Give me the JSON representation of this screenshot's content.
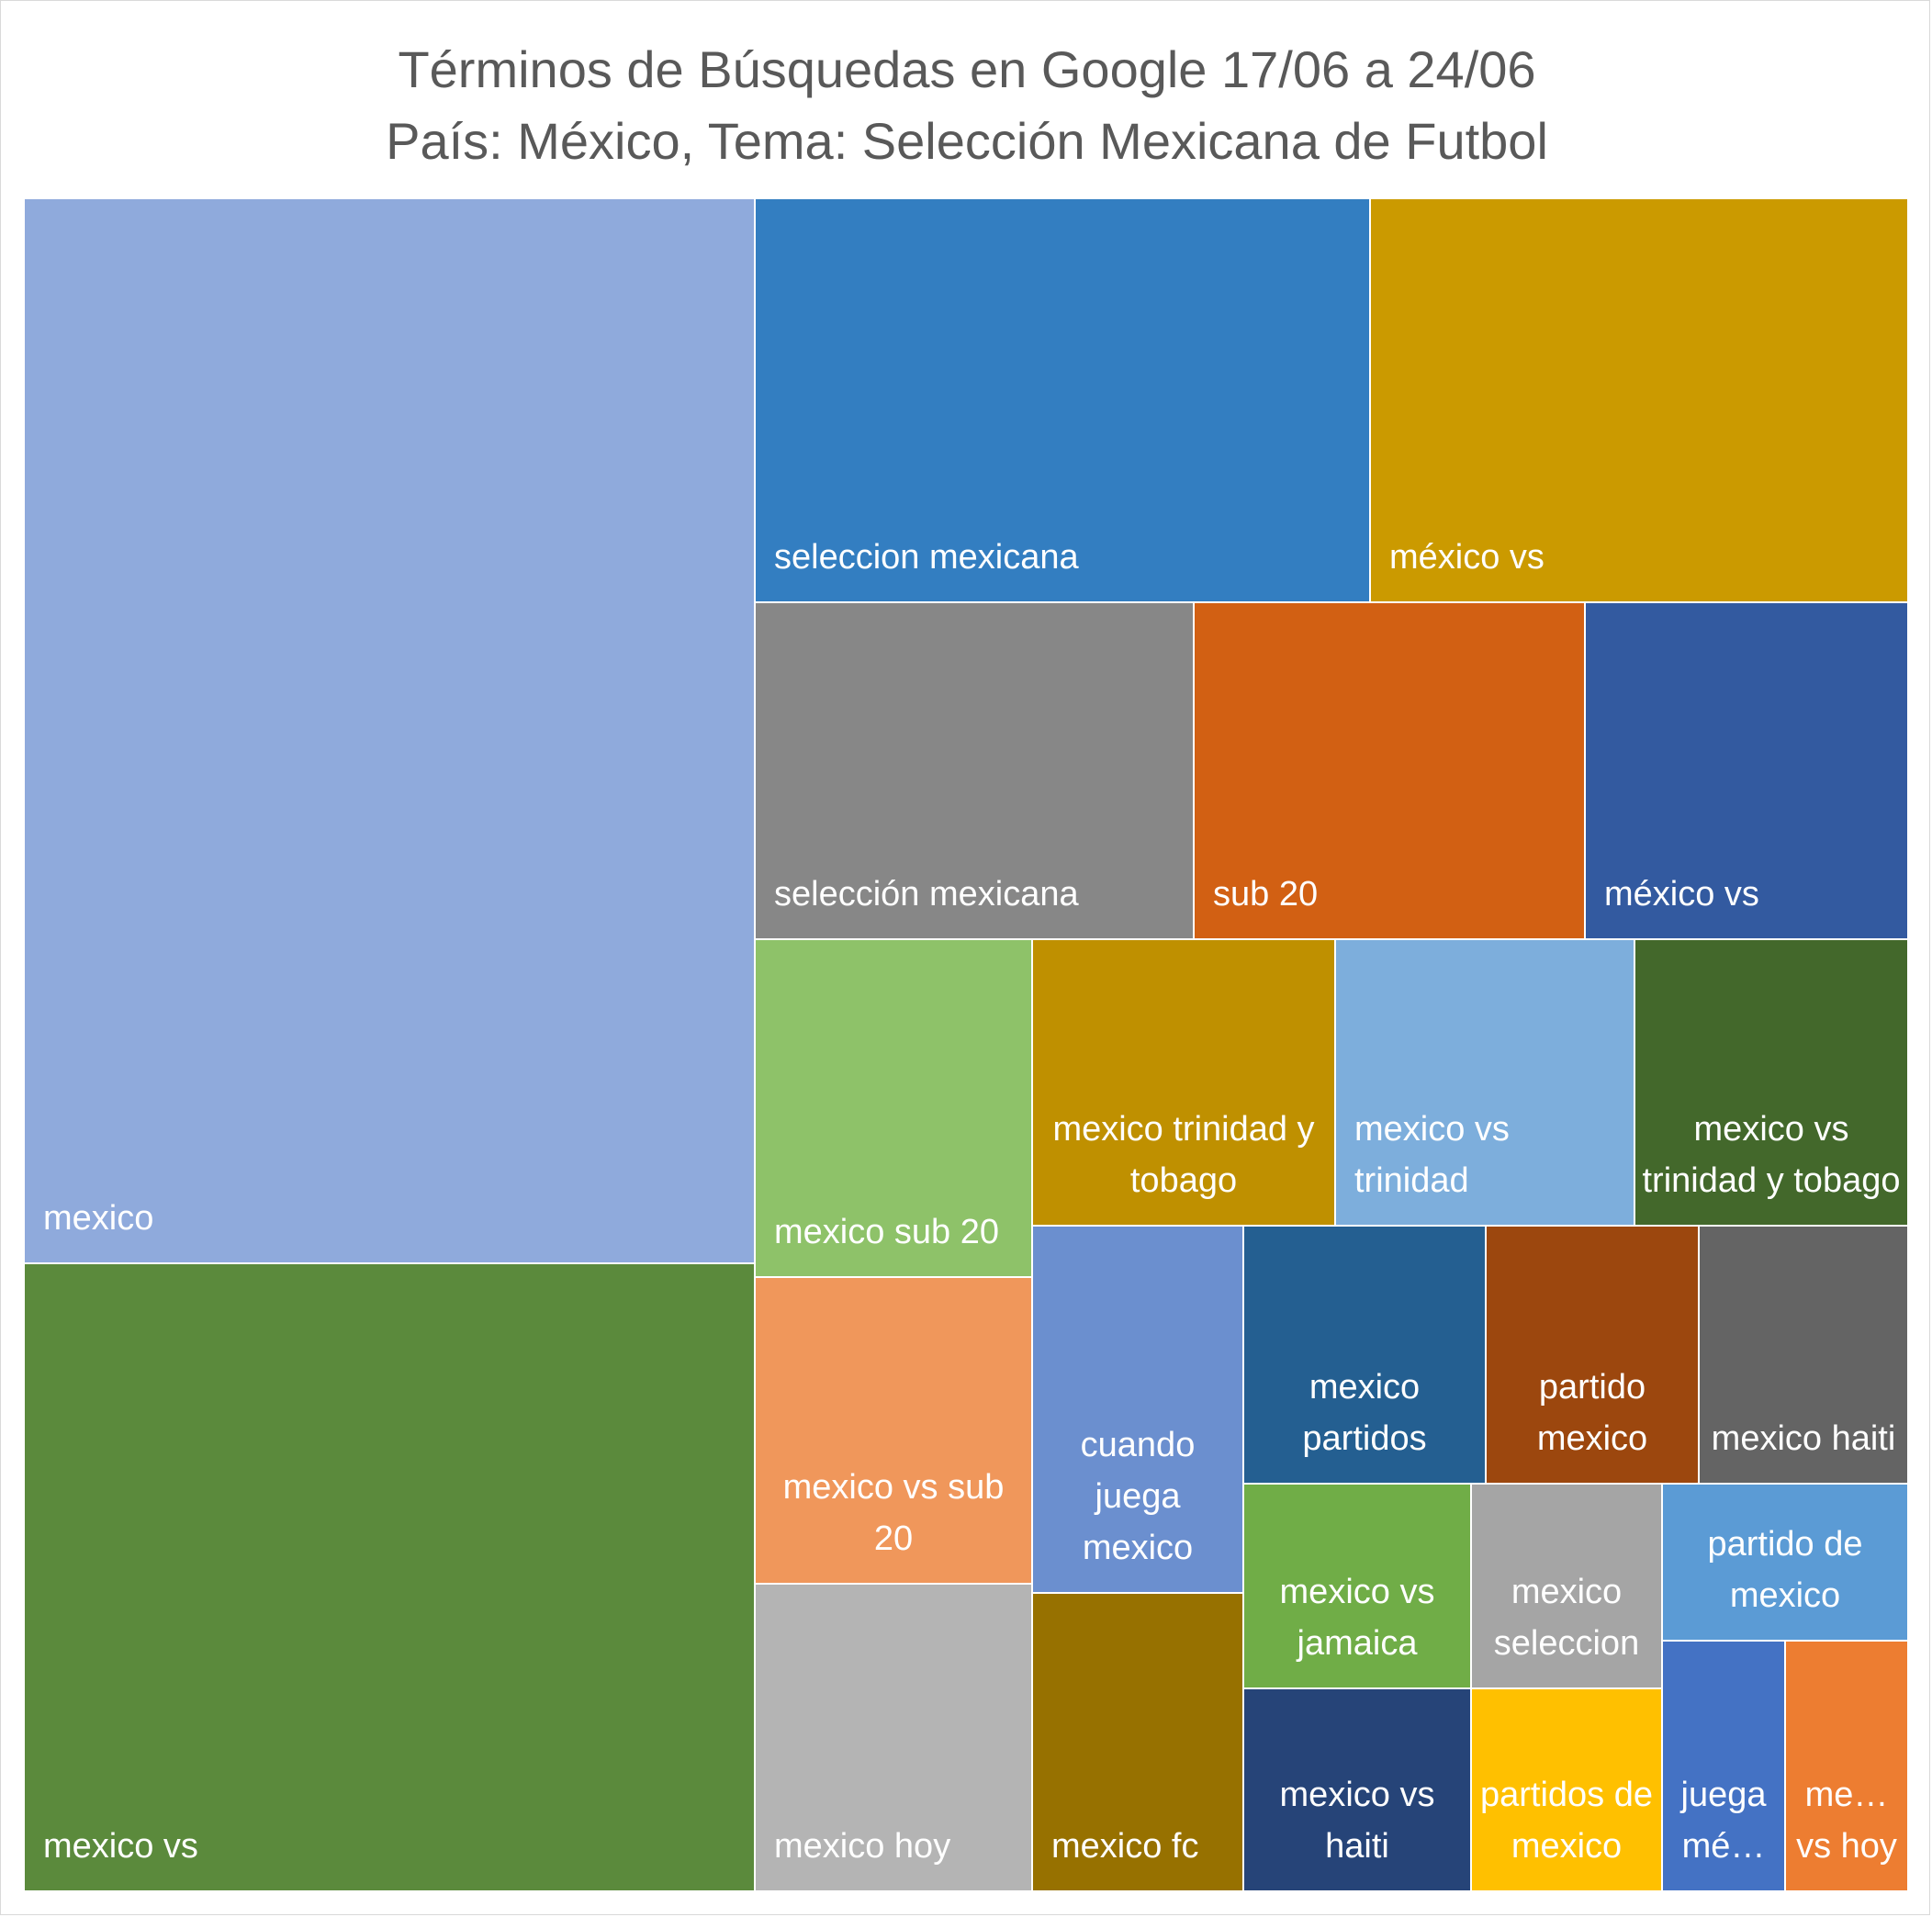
{
  "chart_data": {
    "type": "treemap",
    "title": "Términos de Búsquedas en Google 17/06 a 24/06",
    "subtitle": "País: México, Tema: Selección Mexicana de Futbol",
    "items": [
      {
        "label": "mexico",
        "value": 100,
        "color": "#8faadc"
      },
      {
        "label": "mexico vs",
        "value": 69,
        "color": "#5b8a3c"
      },
      {
        "label": "seleccion mexicana",
        "value": 31,
        "color": "#337ec1"
      },
      {
        "label": "méxico vs",
        "value": 27,
        "color": "#cb9a00"
      },
      {
        "label": "selección mexicana",
        "value": 18,
        "color": "#878787"
      },
      {
        "label": "sub 20",
        "value": 17,
        "color": "#d26013"
      },
      {
        "label": "méxico vs",
        "value": 14,
        "color": "#335aa0"
      },
      {
        "label": "mexico sub 20",
        "value": 11,
        "color": "#8ec269"
      },
      {
        "label": "mexico trinidad y tobago",
        "value": 10,
        "color": "#bf9000"
      },
      {
        "label": "mexico vs trinidad",
        "value": 10,
        "color": "#7daedc"
      },
      {
        "label": "mexico vs trinidad y tobago",
        "value": 9,
        "color": "#43682b"
      },
      {
        "label": "mexico vs sub 20",
        "value": 11,
        "color": "#f0975b"
      },
      {
        "label": "mexico hoy",
        "value": 11,
        "color": "#b4b4b4"
      },
      {
        "label": "cuando juega mexico",
        "value": 7,
        "color": "#6b8fcf"
      },
      {
        "label": "mexico fc",
        "value": 7,
        "color": "#977100"
      },
      {
        "label": "mexico partidos",
        "value": 6,
        "color": "#245f91"
      },
      {
        "label": "partido mexico",
        "value": 6,
        "color": "#9c470e"
      },
      {
        "label": "mexico haiti",
        "value": 5,
        "color": "#646464"
      },
      {
        "label": "mexico vs jamaica",
        "value": 5,
        "color": "#70ad47"
      },
      {
        "label": "mexico seleccion",
        "value": 4,
        "color": "#a5a5a5"
      },
      {
        "label": "partido de mexico",
        "value": 4,
        "color": "#5b9bd5"
      },
      {
        "label": "mexico vs haiti",
        "value": 4,
        "color": "#264478"
      },
      {
        "label": "partidos de mexico",
        "value": 4,
        "color": "#ffc000"
      },
      {
        "label": "juega mé…",
        "value": 3,
        "color": "#4472c4"
      },
      {
        "label": "me… vs hoy",
        "value": 3,
        "color": "#ed7d31"
      }
    ]
  }
}
